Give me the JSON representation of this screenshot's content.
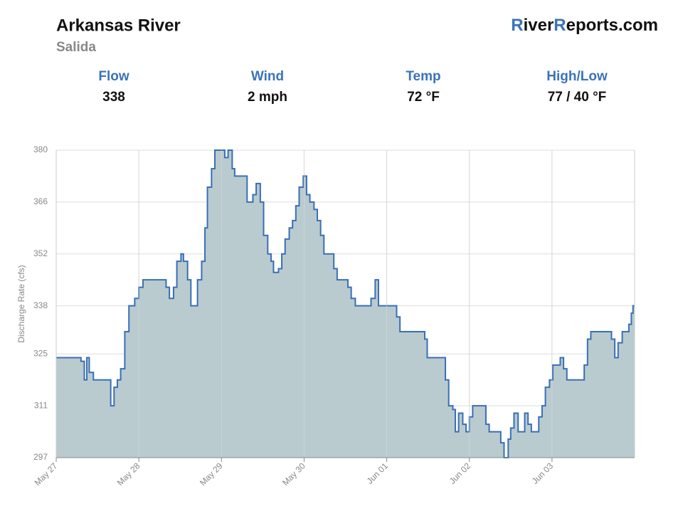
{
  "header": {
    "title": "Arkansas River",
    "subtitle": "Salida",
    "brand": [
      "R",
      "iver",
      "R",
      "eports.com"
    ]
  },
  "stats": [
    {
      "label": "Flow",
      "value": "338"
    },
    {
      "label": "Wind",
      "value": "2 mph"
    },
    {
      "label": "Temp",
      "value": "72 °F"
    },
    {
      "label": "High/Low",
      "value": "77 / 40 °F"
    }
  ],
  "chart_data": {
    "type": "step-area",
    "y_label": "Discharge Rate (cfs)",
    "color": "#3a6fb5",
    "fill": "#b9cbcf",
    "grid": true,
    "xlim": [
      0,
      7
    ],
    "ylim": [
      297,
      380
    ],
    "xticks": [
      {
        "value": 0,
        "label": "May 27"
      },
      {
        "value": 1,
        "label": "May 28"
      },
      {
        "value": 2,
        "label": "May 29"
      },
      {
        "value": 3,
        "label": "May 30"
      },
      {
        "value": 4,
        "label": "Jun 01"
      },
      {
        "value": 5,
        "label": "Jun 02"
      },
      {
        "value": 6,
        "label": "Jun 03"
      }
    ],
    "yticks": [
      297,
      311,
      325,
      338,
      352,
      366,
      380
    ],
    "x": [
      0,
      0.3,
      0.34,
      0.37,
      0.4,
      0.45,
      0.66,
      0.7,
      0.74,
      0.78,
      0.83,
      0.88,
      0.95,
      1.0,
      1.05,
      1.33,
      1.37,
      1.42,
      1.46,
      1.51,
      1.54,
      1.59,
      1.63,
      1.71,
      1.76,
      1.8,
      1.83,
      1.88,
      1.92,
      2.04,
      2.08,
      2.13,
      2.16,
      2.31,
      2.38,
      2.42,
      2.47,
      2.51,
      2.56,
      2.6,
      2.63,
      2.69,
      2.73,
      2.77,
      2.82,
      2.86,
      2.9,
      2.94,
      2.99,
      3.03,
      3.07,
      3.12,
      3.16,
      3.2,
      3.24,
      3.36,
      3.4,
      3.53,
      3.57,
      3.62,
      3.81,
      3.86,
      3.9,
      4.12,
      4.16,
      4.46,
      4.49,
      4.71,
      4.75,
      4.8,
      4.83,
      4.87,
      4.92,
      4.96,
      5.0,
      5.04,
      5.2,
      5.24,
      5.38,
      5.42,
      5.47,
      5.5,
      5.54,
      5.59,
      5.67,
      5.71,
      5.75,
      5.84,
      5.88,
      5.92,
      5.97,
      6.01,
      6.1,
      6.14,
      6.18,
      6.39,
      6.43,
      6.47,
      6.72,
      6.76,
      6.8,
      6.85,
      6.93,
      6.96,
      6.98,
      7
    ],
    "values": [
      324,
      323,
      318,
      324,
      320,
      318,
      311,
      316,
      318,
      321,
      331,
      338,
      340,
      343,
      345,
      343,
      340,
      343,
      350,
      352,
      350,
      345,
      338,
      345,
      350,
      359,
      370,
      375,
      380,
      378,
      380,
      375,
      373,
      366,
      368,
      371,
      366,
      357,
      352,
      350,
      347,
      348,
      352,
      356,
      359,
      361,
      365,
      370,
      373,
      368,
      366,
      364,
      361,
      357,
      352,
      348,
      345,
      343,
      340,
      338,
      340,
      345,
      338,
      335,
      331,
      329,
      324,
      318,
      311,
      310,
      304,
      309,
      306,
      304,
      308,
      311,
      306,
      304,
      301,
      297,
      302,
      305,
      309,
      304,
      309,
      306,
      304,
      308,
      311,
      316,
      318,
      322,
      324,
      321,
      318,
      322,
      329,
      331,
      329,
      324,
      328,
      331,
      333,
      336,
      338,
      338
    ]
  }
}
